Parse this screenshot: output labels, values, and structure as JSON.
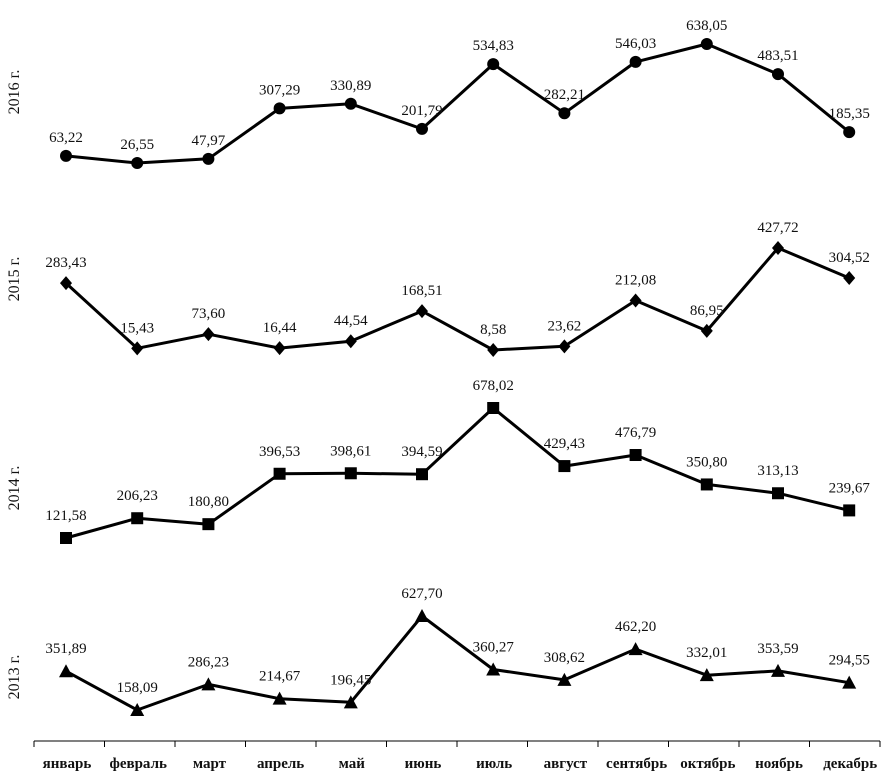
{
  "chart_data": {
    "type": "line",
    "categories": [
      "январь",
      "февраль",
      "март",
      "апрель",
      "май",
      "июнь",
      "июль",
      "август",
      "сентябрь",
      "октябрь",
      "ноябрь",
      "декабрь"
    ],
    "series": [
      {
        "name": "2016 г.",
        "marker": "circle",
        "values": [
          63.22,
          26.55,
          47.97,
          307.29,
          330.89,
          201.79,
          534.83,
          282.21,
          546.03,
          638.05,
          483.51,
          185.35
        ],
        "labels": [
          "63,22",
          "26,55",
          "47,97",
          "307,29",
          "330,89",
          "201,79",
          "534,83",
          "282,21",
          "546,03",
          "638,05",
          "483,51",
          "185,35"
        ]
      },
      {
        "name": "2015 г.",
        "marker": "diamond",
        "values": [
          283.43,
          15.43,
          73.6,
          16.44,
          44.54,
          168.51,
          8.58,
          23.62,
          212.08,
          86.95,
          427.72,
          304.52
        ],
        "labels": [
          "283,43",
          "15,43",
          "73,60",
          "16,44",
          "44,54",
          "168,51",
          "8,58",
          "23,62",
          "212,08",
          "86,95",
          "427,72",
          "304,52"
        ]
      },
      {
        "name": "2014 г.",
        "marker": "square",
        "values": [
          121.58,
          206.23,
          180.8,
          396.53,
          398.61,
          394.59,
          678.02,
          429.43,
          476.79,
          350.8,
          313.13,
          239.67
        ],
        "labels": [
          "121,58",
          "206,23",
          "180,80",
          "396,53",
          "398,61",
          "394,59",
          "678,02",
          "429,43",
          "476,79",
          "350,80",
          "313,13",
          "239,67"
        ]
      },
      {
        "name": "2013 г.",
        "marker": "triangle",
        "values": [
          351.89,
          158.09,
          286.23,
          214.67,
          196.45,
          627.7,
          360.27,
          308.62,
          462.2,
          332.01,
          353.59,
          294.55
        ],
        "labels": [
          "351,89",
          "158,09",
          "286,23",
          "214,67",
          "196,45",
          "627,70",
          "360,27",
          "308,62",
          "462,20",
          "332,01",
          "353,59",
          "294,55"
        ]
      }
    ],
    "legend": "none",
    "grid": false
  }
}
